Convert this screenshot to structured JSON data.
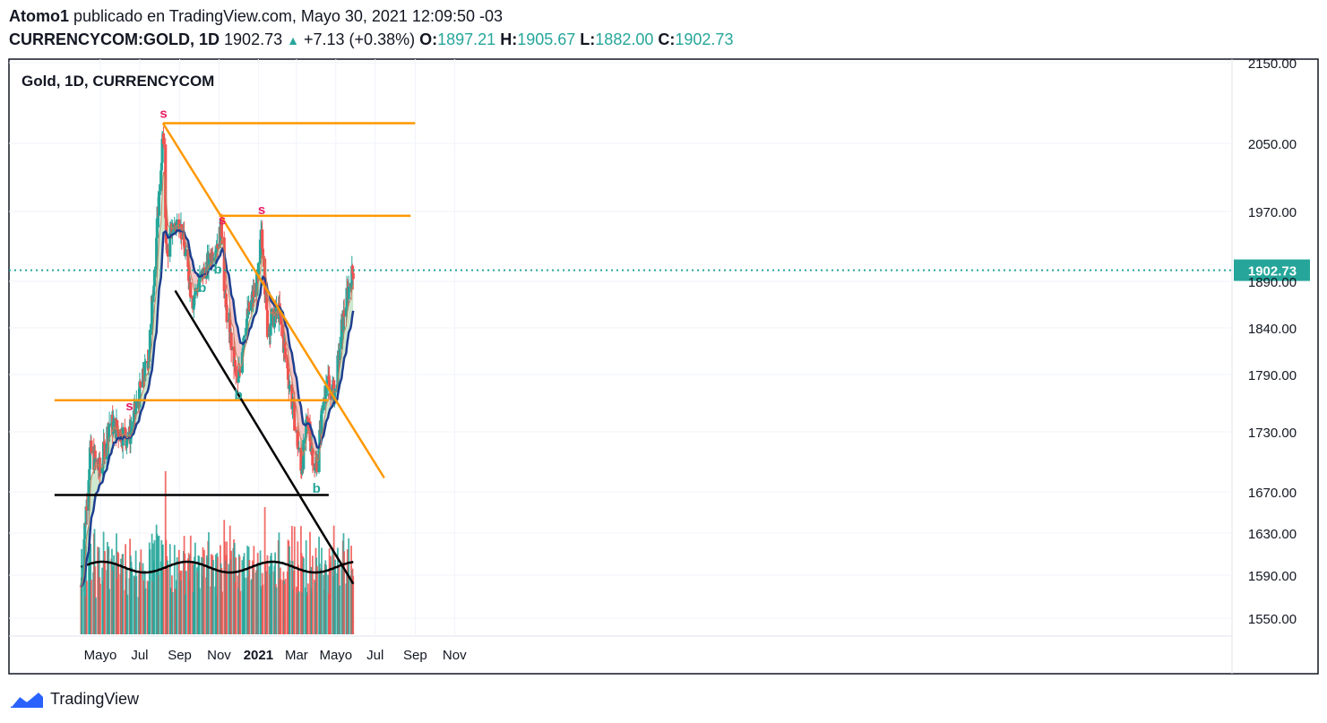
{
  "header": {
    "author": "Atomo1",
    "publish_text": "publicado en TradingView.com, Mayo 30, 2021 12:09:50 -03",
    "symbol": "CURRENCYCOM:GOLD, 1D",
    "price": "1902.73",
    "change": "+7.13 (+0.38%)",
    "o_label": "O:",
    "o_value": "1897.21",
    "h_label": "H:",
    "h_value": "1905.67",
    "l_label": "L:",
    "l_value": "1882.00",
    "c_label": "C:",
    "c_value": "1902.73"
  },
  "footer": {
    "brand": "TradingView"
  },
  "colors": {
    "up": "#26a69a",
    "down": "#ef5350",
    "trendline": "#ff9800",
    "support": "#000000",
    "ema": "#1e3f8f",
    "dotted": "#26a69a",
    "signal": "#e91e63"
  },
  "chart_data": {
    "type": "candlestick",
    "title": "Gold, 1D, CURRENCYCOM",
    "y_axis_ticks": [
      2150,
      2050,
      1970,
      1890,
      1840,
      1790,
      1730,
      1670,
      1630,
      1590,
      1550
    ],
    "y_tick_labels": [
      "2150.00",
      "2050.00",
      "1970.00",
      "1890.00",
      "1840.00",
      "1790.00",
      "1730.00",
      "1670.00",
      "1630.00",
      "1590.00",
      "1550.00"
    ],
    "x_axis_labels": [
      "Mayo",
      "Jul",
      "Sep",
      "Nov",
      "2021",
      "Mar",
      "Mayo",
      "Jul",
      "Sep",
      "Nov"
    ],
    "last_price": 1902.73,
    "last_price_label": "1902.73",
    "price_path": [
      [
        "2020-04-01",
        1580
      ],
      [
        "2020-04-15",
        1710
      ],
      [
        "2020-05-01",
        1690
      ],
      [
        "2020-05-15",
        1740
      ],
      [
        "2020-06-01",
        1730
      ],
      [
        "2020-06-15",
        1725
      ],
      [
        "2020-07-01",
        1770
      ],
      [
        "2020-07-15",
        1810
      ],
      [
        "2020-07-27",
        1940
      ],
      [
        "2020-08-06",
        2060
      ],
      [
        "2020-08-12",
        1920
      ],
      [
        "2020-08-20",
        1950
      ],
      [
        "2020-09-01",
        1960
      ],
      [
        "2020-09-21",
        1870
      ],
      [
        "2020-10-01",
        1890
      ],
      [
        "2020-10-15",
        1910
      ],
      [
        "2020-11-06",
        1950
      ],
      [
        "2020-11-10",
        1870
      ],
      [
        "2020-11-30",
        1775
      ],
      [
        "2020-12-10",
        1840
      ],
      [
        "2020-12-31",
        1890
      ],
      [
        "2021-01-06",
        1950
      ],
      [
        "2021-01-15",
        1840
      ],
      [
        "2021-02-01",
        1860
      ],
      [
        "2021-02-16",
        1790
      ],
      [
        "2021-03-01",
        1730
      ],
      [
        "2021-03-08",
        1690
      ],
      [
        "2021-03-18",
        1740
      ],
      [
        "2021-03-31",
        1690
      ],
      [
        "2021-04-15",
        1780
      ],
      [
        "2021-04-30",
        1770
      ],
      [
        "2021-05-10",
        1840
      ],
      [
        "2021-05-20",
        1880
      ],
      [
        "2021-05-28",
        1903
      ]
    ],
    "horizontal_levels": [
      2075,
      1965,
      1763,
      1667
    ],
    "trendlines": [
      {
        "from": [
          "2020-08-06",
          2075
        ],
        "to": [
          "2021-07-15",
          1684
        ]
      },
      {
        "from": [
          "2020-08-25",
          1880
        ],
        "to": [
          "2021-05-28",
          1582
        ]
      }
    ],
    "signals": [
      {
        "label": "s",
        "date": "2020-08-07"
      },
      {
        "label": "s",
        "date": "2020-06-15"
      },
      {
        "label": "s",
        "date": "2020-11-06"
      },
      {
        "label": "s",
        "date": "2021-01-06"
      },
      {
        "label": "b",
        "date": "2020-10-06"
      },
      {
        "label": "b",
        "date": "2020-10-30"
      },
      {
        "label": "b",
        "date": "2020-12-01"
      },
      {
        "label": "b",
        "date": "2021-04-01"
      }
    ]
  }
}
